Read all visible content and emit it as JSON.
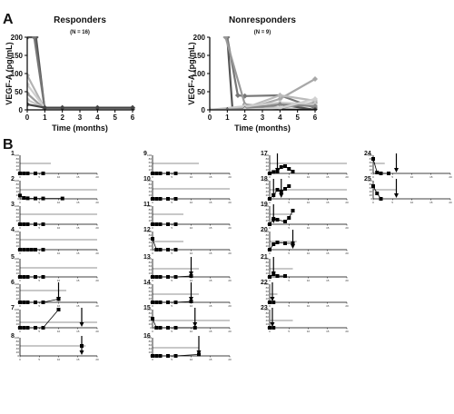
{
  "panels": {
    "a": "A",
    "b": "B"
  },
  "chart_data": [
    {
      "type": "line",
      "title": "Responders",
      "subtitle": "(N = 16)",
      "xlabel": "Time (months)",
      "ylabel": "VEGF-A (pg/mL)",
      "xlim": [
        0,
        6
      ],
      "ylim": [
        0,
        200
      ],
      "xticks": [
        0,
        1,
        2,
        3,
        4,
        5,
        6
      ],
      "yticks": [
        0,
        50,
        100,
        150,
        200
      ],
      "series": [
        {
          "color": "#555555",
          "x": [
            0,
            0.5,
            1,
            2,
            3,
            4,
            5,
            6
          ],
          "y": [
            200,
            200,
            0,
            0,
            0,
            0,
            0,
            0
          ]
        },
        {
          "color": "#777777",
          "x": [
            0.4,
            1,
            2,
            4,
            6
          ],
          "y": [
            200,
            2,
            2,
            2,
            2
          ]
        },
        {
          "color": "#b3b3b3",
          "x": [
            0,
            1,
            2,
            4,
            6
          ],
          "y": [
            95,
            3,
            3,
            3,
            3
          ]
        },
        {
          "color": "#cfcfcf",
          "x": [
            0,
            1,
            2,
            4,
            6
          ],
          "y": [
            70,
            5,
            5,
            5,
            5
          ]
        },
        {
          "color": "#9a9a9a",
          "x": [
            0,
            1,
            2,
            4,
            6
          ],
          "y": [
            45,
            2,
            2,
            2,
            2
          ]
        },
        {
          "color": "#c8c8c8",
          "x": [
            0,
            1,
            2,
            4,
            6
          ],
          "y": [
            28,
            4,
            4,
            4,
            4
          ]
        },
        {
          "color": "#444444",
          "x": [
            0,
            1,
            2,
            4,
            6
          ],
          "y": [
            15,
            6,
            6,
            6,
            6
          ]
        }
      ]
    },
    {
      "type": "line",
      "title": "Nonresponders",
      "subtitle": "(N = 9)",
      "xlabel": "Time (months)",
      "ylabel": "VEGF-A (pg/mL)",
      "xlim": [
        0,
        6
      ],
      "ylim": [
        0,
        200
      ],
      "xticks": [
        0,
        1,
        2,
        3,
        4,
        5,
        6
      ],
      "yticks": [
        0,
        50,
        100,
        150,
        200
      ],
      "series": [
        {
          "color": "#555555",
          "x": [
            1,
            1.3,
            2,
            4,
            6
          ],
          "y": [
            200,
            0,
            0,
            15,
            0
          ]
        },
        {
          "color": "#777777",
          "x": [
            1,
            1.6,
            2,
            4,
            6
          ],
          "y": [
            200,
            40,
            38,
            40,
            5
          ]
        },
        {
          "color": "#999999",
          "x": [
            0.9,
            2,
            4,
            6
          ],
          "y": [
            200,
            15,
            5,
            20
          ]
        },
        {
          "color": "#a8a8a8",
          "x": [
            0,
            2,
            4,
            6
          ],
          "y": [
            0,
            2,
            30,
            85
          ]
        },
        {
          "color": "#bbbbbb",
          "x": [
            0,
            2,
            4,
            6
          ],
          "y": [
            0,
            5,
            40,
            25
          ]
        },
        {
          "color": "#cccccc",
          "x": [
            0,
            2,
            4,
            6
          ],
          "y": [
            0,
            10,
            20,
            15
          ]
        },
        {
          "color": "#888888",
          "x": [
            0,
            2,
            4,
            6
          ],
          "y": [
            0,
            3,
            15,
            10
          ]
        },
        {
          "color": "#3a3a3a",
          "x": [
            1,
            2,
            6
          ],
          "y": [
            0,
            2,
            0
          ]
        },
        {
          "color": "#d0d0d0",
          "x": [
            0,
            2,
            4,
            6
          ],
          "y": [
            0,
            1,
            5,
            30
          ]
        }
      ]
    }
  ],
  "small_multiples": {
    "xlim": [
      0,
      20
    ],
    "ylim": [
      0,
      100
    ],
    "xticks": [
      0,
      5,
      10,
      15,
      20
    ],
    "yticks": [
      0,
      20,
      40,
      60,
      80,
      100
    ],
    "patients": [
      {
        "id": "1",
        "ref": 55,
        "ref_end": 8,
        "x": [
          0,
          1,
          2,
          4,
          6
        ],
        "y": [
          0,
          0,
          0,
          0,
          0
        ],
        "arrows": []
      },
      {
        "id": "2",
        "ref": 50,
        "ref_end": 20,
        "x": [
          0,
          1,
          2,
          4,
          6,
          11
        ],
        "y": [
          18,
          5,
          3,
          2,
          2,
          2
        ],
        "arrows": []
      },
      {
        "id": "3",
        "ref": 55,
        "ref_end": 20,
        "x": [
          0,
          1,
          2,
          4,
          6
        ],
        "y": [
          0,
          0,
          0,
          0,
          0
        ],
        "arrows": []
      },
      {
        "id": "4",
        "ref": 55,
        "ref_end": 20,
        "x": [
          0,
          1,
          2,
          3,
          4,
          6
        ],
        "y": [
          0,
          0,
          0,
          0,
          0,
          0
        ],
        "arrows": []
      },
      {
        "id": "5",
        "ref": 50,
        "ref_end": 20,
        "x": [
          0,
          1,
          2,
          4,
          6
        ],
        "y": [
          0,
          0,
          0,
          0,
          0
        ],
        "arrows": []
      },
      {
        "id": "6",
        "ref": 65,
        "ref_end": 12,
        "x": [
          0,
          1,
          2,
          4,
          6,
          10
        ],
        "y": [
          0,
          0,
          0,
          0,
          0,
          18
        ],
        "arrows": [
          10
        ]
      },
      {
        "id": "7",
        "ref": 30,
        "ref_end": 20,
        "x": [
          0,
          1,
          2,
          4,
          6,
          10
        ],
        "y": [
          0,
          0,
          0,
          0,
          0,
          100
        ],
        "arrows": [
          16
        ]
      },
      {
        "id": "8",
        "ref": 55,
        "ref_end": 17,
        "x": [
          16
        ],
        "y": [
          55
        ],
        "arrows": [
          16
        ]
      },
      {
        "id": "9",
        "ref": 55,
        "ref_end": 12,
        "x": [
          0,
          1,
          2,
          4,
          6
        ],
        "y": [
          0,
          0,
          0,
          0,
          0
        ],
        "arrows": []
      },
      {
        "id": "10",
        "ref": 55,
        "ref_end": 20,
        "x": [
          0,
          1,
          2,
          4,
          6
        ],
        "y": [
          0,
          0,
          0,
          0,
          0
        ],
        "arrows": []
      },
      {
        "id": "11",
        "ref": 55,
        "ref_end": 8,
        "x": [
          0,
          1,
          2,
          4,
          6
        ],
        "y": [
          0,
          0,
          0,
          0,
          0
        ],
        "arrows": []
      },
      {
        "id": "12",
        "ref": 45,
        "ref_end": 8,
        "x": [
          0,
          1,
          2,
          4,
          6
        ],
        "y": [
          60,
          0,
          0,
          0,
          0
        ],
        "arrows": []
      },
      {
        "id": "13",
        "ref": 45,
        "ref_end": 12,
        "x": [
          0,
          1,
          2,
          4,
          6,
          10
        ],
        "y": [
          0,
          0,
          0,
          0,
          0,
          5
        ],
        "arrows": [
          10
        ]
      },
      {
        "id": "14",
        "ref": 45,
        "ref_end": 12,
        "x": [
          0,
          1,
          2,
          4,
          6,
          10
        ],
        "y": [
          0,
          0,
          0,
          0,
          0,
          5
        ],
        "arrows": [
          10
        ]
      },
      {
        "id": "15",
        "ref": 40,
        "ref_end": 20,
        "x": [
          0,
          1,
          2,
          4,
          6,
          11
        ],
        "y": [
          50,
          0,
          0,
          0,
          0,
          0
        ],
        "arrows": [
          11
        ]
      },
      {
        "id": "16",
        "ref": 45,
        "ref_end": 12,
        "x": [
          0,
          1,
          2,
          4,
          6,
          12
        ],
        "y": [
          0,
          0,
          0,
          0,
          0,
          8
        ],
        "arrows": [
          12
        ]
      },
      {
        "id": "17",
        "ref": 55,
        "ref_end": 20,
        "x": [
          0,
          1,
          2,
          3,
          4,
          5,
          6
        ],
        "y": [
          0,
          8,
          10,
          35,
          40,
          25,
          10
        ],
        "arrows": [
          2
        ]
      },
      {
        "id": "18",
        "ref": 50,
        "ref_end": 20,
        "x": [
          0,
          1,
          2,
          3,
          4,
          5
        ],
        "y": [
          0,
          20,
          50,
          40,
          55,
          70
        ],
        "arrows": [
          1,
          3
        ]
      },
      {
        "id": "19",
        "ref": 55,
        "ref_end": 6,
        "x": [
          0,
          1,
          2,
          4,
          5,
          6
        ],
        "y": [
          0,
          30,
          25,
          15,
          35,
          75
        ],
        "arrows": [
          1
        ]
      },
      {
        "id": "20",
        "ref": 45,
        "ref_end": 7,
        "x": [
          0,
          1,
          2,
          4,
          6
        ],
        "y": [
          0,
          30,
          40,
          35,
          35
        ],
        "arrows": [
          6
        ]
      },
      {
        "id": "21",
        "ref": 45,
        "ref_end": 6,
        "x": [
          0,
          1,
          2,
          4
        ],
        "y": [
          0,
          15,
          5,
          5
        ],
        "arrows": [
          1
        ]
      },
      {
        "id": "22",
        "ref": 45,
        "ref_end": 2,
        "x": [
          0,
          1
        ],
        "y": [
          0,
          0
        ],
        "arrows": [
          0.7
        ]
      },
      {
        "id": "23",
        "ref": 40,
        "ref_end": 6,
        "x": [
          0,
          1
        ],
        "y": [
          0,
          0
        ],
        "arrows": [
          0.7
        ]
      },
      {
        "id": "24",
        "ref": 55,
        "ref_end": 3,
        "x": [
          0,
          1,
          2,
          4
        ],
        "y": [
          80,
          5,
          0,
          0
        ],
        "arrows": [
          6
        ]
      },
      {
        "id": "25",
        "ref": 50,
        "ref_end": 6,
        "x": [
          0,
          1,
          2
        ],
        "y": [
          70,
          30,
          0
        ],
        "arrows": [
          6
        ]
      }
    ]
  }
}
